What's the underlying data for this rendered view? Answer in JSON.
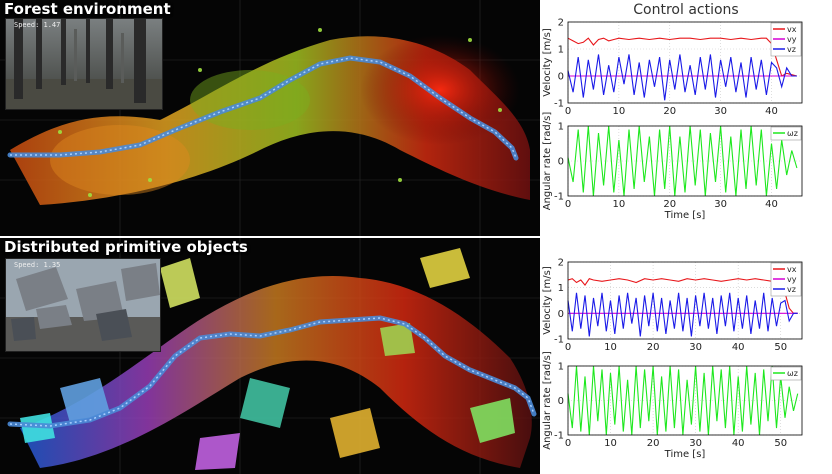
{
  "scenes": [
    {
      "title": "Forest environment",
      "speed_label": "Speed: 1.47"
    },
    {
      "title": "Distributed primitive objects",
      "speed_label": "Speed: 1.35"
    }
  ],
  "control_title": "Control actions",
  "chart_data": [
    {
      "type": "line",
      "title": "",
      "xlabel": "",
      "ylabel": "Velocity [m/s]",
      "xlim": [
        0,
        46
      ],
      "ylim": [
        -1,
        2
      ],
      "xticks": [
        0,
        10,
        20,
        30,
        40
      ],
      "yticks": [
        -1,
        0,
        1,
        2
      ],
      "legend": "top-right",
      "series": [
        {
          "name": "vx",
          "color": "#e8161a",
          "x": [
            0,
            1,
            2,
            3,
            4,
            5,
            6,
            7,
            8,
            9,
            10,
            12,
            14,
            16,
            18,
            20,
            22,
            24,
            26,
            28,
            30,
            32,
            34,
            36,
            38,
            39,
            40,
            41,
            42,
            43,
            44,
            45
          ],
          "y": [
            1.4,
            1.3,
            1.2,
            1.25,
            1.4,
            1.15,
            1.35,
            1.4,
            1.3,
            1.35,
            1.4,
            1.35,
            1.4,
            1.35,
            1.4,
            1.35,
            1.4,
            1.4,
            1.35,
            1.4,
            1.4,
            1.35,
            1.4,
            1.35,
            1.4,
            1.4,
            1.2,
            0.6,
            0.0,
            0.1,
            0.05,
            0.0
          ]
        },
        {
          "name": "vy",
          "color": "#d400d4",
          "x": [
            0,
            45
          ],
          "y": [
            0,
            0
          ]
        },
        {
          "name": "vz",
          "color": "#1a1ae8",
          "x": [
            0,
            1,
            2,
            3,
            4,
            5,
            6,
            7,
            8,
            9,
            10,
            11,
            12,
            13,
            14,
            15,
            16,
            17,
            18,
            19,
            20,
            21,
            22,
            23,
            24,
            25,
            26,
            27,
            28,
            29,
            30,
            31,
            32,
            33,
            34,
            35,
            36,
            37,
            38,
            39,
            40,
            41,
            42,
            43,
            44,
            45
          ],
          "y": [
            0.2,
            -0.6,
            0.7,
            -0.8,
            0.6,
            -0.5,
            0.8,
            -0.7,
            0.4,
            -0.6,
            0.7,
            -0.3,
            0.8,
            -0.7,
            0.5,
            -0.8,
            0.6,
            -0.4,
            0.7,
            -0.9,
            0.6,
            -0.5,
            0.8,
            -0.6,
            0.4,
            -0.7,
            0.7,
            -0.5,
            0.8,
            -0.8,
            0.6,
            -0.4,
            0.7,
            -0.6,
            0.5,
            -0.8,
            0.7,
            -0.5,
            0.6,
            -0.7,
            0.5,
            0.3,
            -0.4,
            0.3,
            0.0,
            0.0
          ]
        }
      ]
    },
    {
      "type": "line",
      "title": "",
      "xlabel": "Time [s]",
      "ylabel": "Angular rate [rad/s]",
      "xlim": [
        0,
        46
      ],
      "ylim": [
        -1,
        1
      ],
      "xticks": [
        0,
        10,
        20,
        30,
        40
      ],
      "yticks": [
        -1,
        0,
        1
      ],
      "legend": "top-right",
      "series": [
        {
          "name": "ωz",
          "color": "#1ee81e",
          "x": [
            0,
            1,
            2,
            3,
            4,
            5,
            6,
            7,
            8,
            9,
            10,
            11,
            12,
            13,
            14,
            15,
            16,
            17,
            18,
            19,
            20,
            21,
            22,
            23,
            24,
            25,
            26,
            27,
            28,
            29,
            30,
            31,
            32,
            33,
            34,
            35,
            36,
            37,
            38,
            39,
            40,
            41,
            42,
            43,
            44,
            45
          ],
          "y": [
            0.1,
            -0.6,
            0.9,
            -0.9,
            1,
            -1,
            0.8,
            -0.7,
            1,
            -0.9,
            0.6,
            -1,
            0.9,
            -0.8,
            1,
            -0.6,
            0.7,
            -1,
            0.9,
            -0.8,
            1,
            -1,
            0.7,
            -0.9,
            1,
            -0.7,
            0.9,
            -1,
            0.8,
            -0.6,
            1,
            -0.9,
            0.7,
            -1,
            0.9,
            -0.8,
            1,
            -0.7,
            0.9,
            -1,
            0.5,
            -0.8,
            0.6,
            -0.4,
            0.3,
            -0.2
          ]
        }
      ]
    },
    {
      "type": "line",
      "title": "",
      "xlabel": "",
      "ylabel": "Velocity [m/s]",
      "xlim": [
        0,
        55
      ],
      "ylim": [
        -1,
        2
      ],
      "xticks": [
        0,
        10,
        20,
        30,
        40,
        50
      ],
      "yticks": [
        -1,
        0,
        1,
        2
      ],
      "legend": "top-right",
      "series": [
        {
          "name": "vx",
          "color": "#e8161a",
          "x": [
            0,
            1,
            2,
            3,
            4,
            5,
            6,
            8,
            10,
            12,
            14,
            16,
            18,
            20,
            22,
            24,
            26,
            28,
            30,
            32,
            34,
            36,
            38,
            40,
            42,
            44,
            46,
            48,
            50,
            51,
            52,
            53,
            54
          ],
          "y": [
            1.3,
            1.35,
            1.2,
            1.3,
            1.1,
            1.35,
            1.3,
            1.25,
            1.3,
            1.35,
            1.3,
            1.2,
            1.35,
            1.3,
            1.35,
            1.3,
            1.25,
            1.35,
            1.3,
            1.35,
            1.3,
            1.25,
            1.3,
            1.35,
            1.3,
            1.35,
            1.3,
            1.25,
            1.3,
            0.8,
            0.2,
            0.0,
            0.0
          ]
        },
        {
          "name": "vy",
          "color": "#d400d4",
          "x": [
            0,
            54
          ],
          "y": [
            0,
            0
          ]
        },
        {
          "name": "vz",
          "color": "#1a1ae8",
          "x": [
            0,
            1,
            2,
            3,
            4,
            5,
            6,
            7,
            8,
            9,
            10,
            11,
            12,
            13,
            14,
            15,
            16,
            17,
            18,
            19,
            20,
            21,
            22,
            23,
            24,
            25,
            26,
            27,
            28,
            29,
            30,
            31,
            32,
            33,
            34,
            35,
            36,
            37,
            38,
            39,
            40,
            41,
            42,
            43,
            44,
            45,
            46,
            47,
            48,
            49,
            50,
            51,
            52,
            53,
            54
          ],
          "y": [
            0.5,
            -0.7,
            0.8,
            -0.6,
            0.7,
            -0.9,
            0.6,
            -0.5,
            0.8,
            -0.7,
            0.5,
            -0.8,
            0.7,
            -0.6,
            0.8,
            -0.4,
            0.6,
            -0.9,
            0.7,
            -0.5,
            0.8,
            -0.7,
            0.6,
            -0.8,
            0.5,
            -0.6,
            0.8,
            -0.7,
            0.6,
            -0.9,
            0.7,
            -0.5,
            0.8,
            -0.6,
            0.6,
            -0.8,
            0.7,
            -0.5,
            0.8,
            -0.7,
            0.6,
            -0.6,
            0.7,
            -0.8,
            0.5,
            -0.6,
            0.8,
            -0.7,
            0.6,
            -0.5,
            0.4,
            0.5,
            -0.3,
            0.0,
            0.0
          ]
        }
      ]
    },
    {
      "type": "line",
      "title": "",
      "xlabel": "Time [s]",
      "ylabel": "Angular rate [rad/s]",
      "xlim": [
        0,
        55
      ],
      "ylim": [
        -1,
        1
      ],
      "xticks": [
        0,
        10,
        20,
        30,
        40,
        50
      ],
      "yticks": [
        -1,
        0,
        1
      ],
      "legend": "top-right",
      "series": [
        {
          "name": "ωz",
          "color": "#1ee81e",
          "x": [
            0,
            1,
            2,
            3,
            4,
            5,
            6,
            7,
            8,
            9,
            10,
            11,
            12,
            13,
            14,
            15,
            16,
            17,
            18,
            19,
            20,
            21,
            22,
            23,
            24,
            25,
            26,
            27,
            28,
            29,
            30,
            31,
            32,
            33,
            34,
            35,
            36,
            37,
            38,
            39,
            40,
            41,
            42,
            43,
            44,
            45,
            46,
            47,
            48,
            49,
            50,
            51,
            52,
            53,
            54
          ],
          "y": [
            0.2,
            -0.8,
            1,
            -0.9,
            0.7,
            -1,
            1,
            -0.6,
            0.9,
            -1,
            0.8,
            -0.7,
            1,
            -0.9,
            0.6,
            -1,
            1,
            -0.8,
            0.9,
            -0.6,
            1,
            -1,
            0.7,
            -0.9,
            1,
            -0.8,
            0.9,
            -1,
            0.6,
            -0.7,
            1,
            -0.9,
            0.8,
            -1,
            1,
            -0.6,
            0.9,
            -0.8,
            1,
            -1,
            0.7,
            -0.9,
            1,
            -0.7,
            0.8,
            -1,
            0.9,
            -0.6,
            1,
            -0.8,
            0.7,
            -0.5,
            0.4,
            -0.3,
            0.2
          ]
        }
      ]
    }
  ]
}
